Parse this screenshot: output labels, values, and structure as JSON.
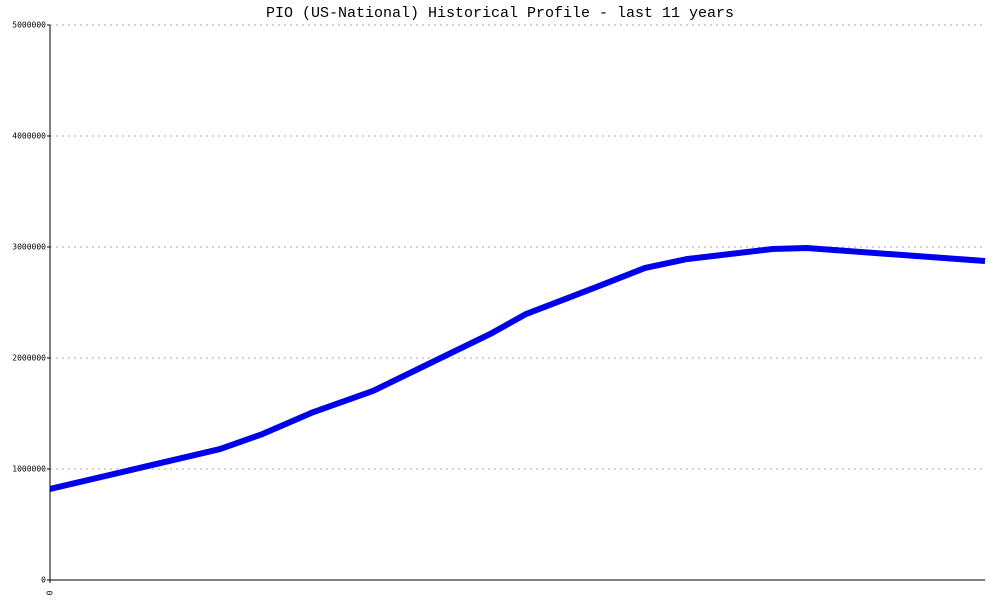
{
  "chart_data": {
    "type": "line",
    "title": "PIO (US-National) Historical Profile - last 11 years",
    "x": [
      0,
      2,
      2.5,
      3.1,
      3.8,
      4.5,
      5.2,
      5.6,
      6.4,
      7,
      7.5,
      8.5,
      8.9,
      11
    ],
    "series": [
      {
        "color": "#0000ee",
        "values": [
          820000,
          1180000,
          1315000,
          1513000,
          1703000,
          1964000,
          2225000,
          2396000,
          2631000,
          2811000,
          2892000,
          2982000,
          2991000,
          2874000
        ]
      }
    ],
    "xlim": [
      0,
      11
    ],
    "xticks": [
      0
    ],
    "ylim": [
      0,
      5000000
    ],
    "yticks": [
      0,
      1000000,
      2000000,
      3000000,
      4000000,
      5000000
    ],
    "grid": true
  }
}
